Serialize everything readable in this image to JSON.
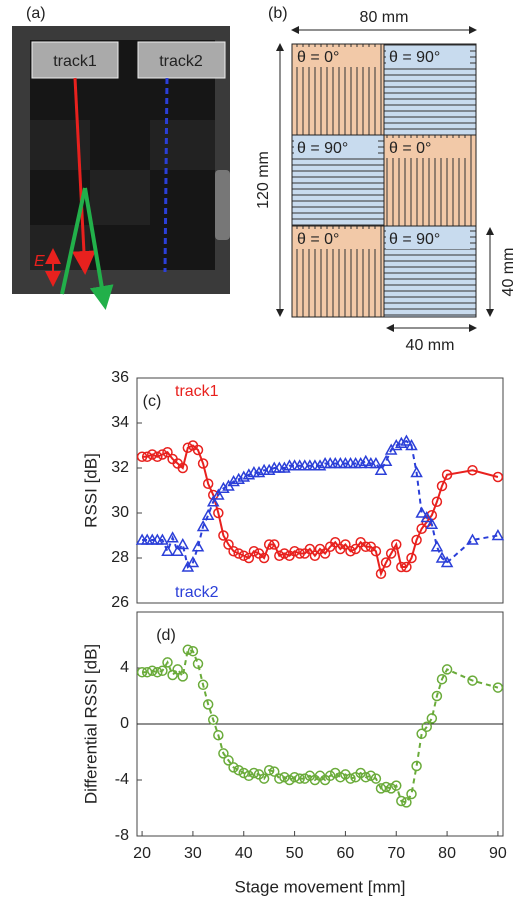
{
  "panel_a": {
    "label": "(a)",
    "tracks": [
      "track1",
      "track2"
    ],
    "e_label": "E"
  },
  "panel_b": {
    "label": "(b)",
    "width_label": "80 mm",
    "height_label": "120 mm",
    "cell_height_label": "40 mm",
    "cell_width_label": "40 mm",
    "cells": [
      "θ = 0°",
      "θ = 90°",
      "θ = 90°",
      "θ = 0°",
      "θ = 0°",
      "θ = 90°"
    ]
  },
  "chart_data": [
    {
      "type": "line",
      "panel_label": "(c)",
      "y_label": "RSSI [dB]",
      "x": [
        20,
        21,
        22,
        23,
        24,
        25,
        26,
        27,
        28,
        29,
        30,
        31,
        32,
        33,
        34,
        35,
        36,
        37,
        38,
        39,
        40,
        41,
        42,
        43,
        44,
        45,
        46,
        47,
        48,
        49,
        50,
        51,
        52,
        53,
        54,
        55,
        56,
        57,
        58,
        59,
        60,
        61,
        62,
        63,
        64,
        65,
        66,
        67,
        68,
        69,
        70,
        71,
        72,
        73,
        74,
        75,
        76,
        77,
        78,
        79,
        80,
        85,
        90
      ],
      "xlim": [
        19,
        91
      ],
      "ylim": [
        26,
        36
      ],
      "yticks": [
        26,
        28,
        30,
        32,
        34,
        36
      ],
      "series": [
        {
          "name": "track1",
          "color": "#e8211e",
          "marker": "circle",
          "dashed": false,
          "values": [
            32.5,
            32.5,
            32.6,
            32.5,
            32.6,
            32.7,
            32.4,
            32.2,
            32.0,
            32.9,
            33.0,
            32.8,
            32.2,
            31.3,
            30.8,
            30.0,
            29.0,
            28.6,
            28.3,
            28.2,
            28.1,
            28.0,
            28.3,
            28.2,
            28.0,
            28.6,
            28.6,
            28.1,
            28.2,
            28.1,
            28.3,
            28.2,
            28.2,
            28.4,
            28.1,
            28.4,
            28.2,
            28.5,
            28.7,
            28.4,
            28.6,
            28.3,
            28.4,
            28.7,
            28.5,
            28.5,
            28.3,
            27.3,
            27.8,
            28.2,
            28.6,
            27.6,
            27.6,
            28.0,
            28.8,
            29.3,
            29.6,
            29.9,
            30.5,
            31.2,
            31.7,
            31.9,
            31.6
          ]
        },
        {
          "name": "track2",
          "color": "#2b3fd8",
          "marker": "triangle",
          "dashed": true,
          "values": [
            28.8,
            28.8,
            28.8,
            28.8,
            28.8,
            28.3,
            28.9,
            28.3,
            28.6,
            27.6,
            27.8,
            28.5,
            29.4,
            29.9,
            30.5,
            30.8,
            31.1,
            31.2,
            31.4,
            31.5,
            31.6,
            31.7,
            31.8,
            31.8,
            31.9,
            31.9,
            32.0,
            32.0,
            32.0,
            32.1,
            32.1,
            32.1,
            32.1,
            32.1,
            32.1,
            32.1,
            32.2,
            32.2,
            32.2,
            32.2,
            32.2,
            32.2,
            32.2,
            32.2,
            32.3,
            32.2,
            32.2,
            31.9,
            32.3,
            32.8,
            33.0,
            33.1,
            33.2,
            33.0,
            31.8,
            30.0,
            29.8,
            29.5,
            28.5,
            28.0,
            27.8,
            28.8,
            29.0
          ]
        }
      ]
    },
    {
      "type": "line",
      "panel_label": "(d)",
      "y_label": "Differential RSSI [dB]",
      "x_label": "Stage movement [mm]",
      "x": [
        20,
        21,
        22,
        23,
        24,
        25,
        26,
        27,
        28,
        29,
        30,
        31,
        32,
        33,
        34,
        35,
        36,
        37,
        38,
        39,
        40,
        41,
        42,
        43,
        44,
        45,
        46,
        47,
        48,
        49,
        50,
        51,
        52,
        53,
        54,
        55,
        56,
        57,
        58,
        59,
        60,
        61,
        62,
        63,
        64,
        65,
        66,
        67,
        68,
        69,
        70,
        71,
        72,
        73,
        74,
        75,
        76,
        77,
        78,
        79,
        80,
        85,
        90
      ],
      "xlim": [
        19,
        91
      ],
      "xticks": [
        20,
        30,
        40,
        50,
        60,
        70,
        80,
        90
      ],
      "ylim": [
        -8,
        8
      ],
      "yticks": [
        -8,
        -4,
        0,
        4
      ],
      "reference_line": 0,
      "series": [
        {
          "color": "#6aab3a",
          "marker": "circle",
          "dashed": true,
          "values": [
            3.7,
            3.7,
            3.8,
            3.7,
            3.8,
            4.4,
            3.5,
            3.9,
            3.4,
            5.3,
            5.2,
            4.3,
            2.8,
            1.4,
            0.3,
            -0.8,
            -2.1,
            -2.6,
            -3.1,
            -3.3,
            -3.5,
            -3.7,
            -3.5,
            -3.6,
            -3.9,
            -3.3,
            -3.4,
            -3.9,
            -3.8,
            -4.0,
            -3.8,
            -3.9,
            -3.9,
            -3.7,
            -4.0,
            -3.7,
            -4.0,
            -3.7,
            -3.5,
            -3.8,
            -3.6,
            -3.9,
            -3.8,
            -3.5,
            -3.8,
            -3.7,
            -3.9,
            -4.6,
            -4.5,
            -4.6,
            -4.4,
            -5.5,
            -5.6,
            -5.0,
            -3.0,
            -0.7,
            -0.2,
            0.4,
            2.0,
            3.2,
            3.9,
            3.1,
            2.6
          ]
        }
      ]
    }
  ]
}
